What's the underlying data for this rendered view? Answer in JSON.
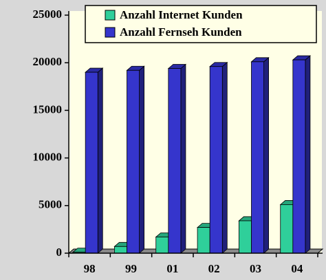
{
  "chart_data": {
    "type": "bar3d",
    "categories": [
      "98",
      "99",
      "01",
      "02",
      "03",
      "04"
    ],
    "series": [
      {
        "name": "Anzahl Internet Kunden",
        "color": "#2fcf9a",
        "values": [
          100,
          700,
          1700,
          2700,
          3400,
          5100
        ]
      },
      {
        "name": "Anzahl Fernseh Kunden",
        "color": "#3535cc",
        "values": [
          19000,
          19200,
          19400,
          19600,
          20100,
          20300
        ]
      }
    ],
    "ylim": [
      0,
      25000
    ],
    "yticks": [
      0,
      5000,
      10000,
      15000,
      20000,
      25000
    ],
    "grid": false
  }
}
